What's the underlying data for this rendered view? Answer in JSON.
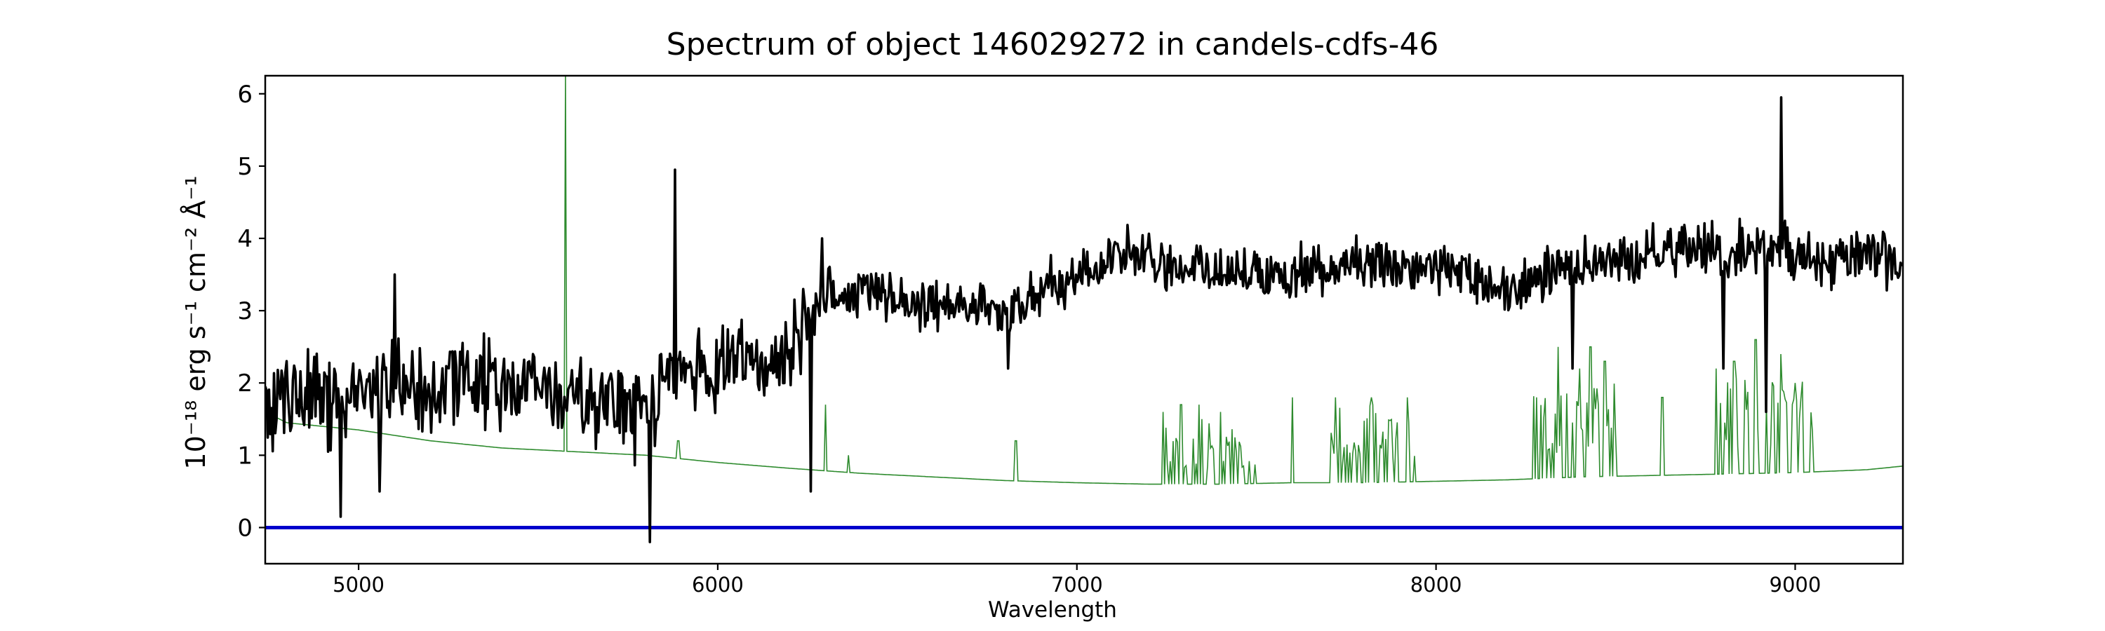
{
  "chart_data": {
    "type": "line",
    "title": "Spectrum of object 146029272 in candels-cdfs-46",
    "xlabel": "Wavelength",
    "ylabel": "10⁻¹⁸ erg s⁻¹ cm⁻² Å⁻¹",
    "xlim": [
      4740,
      9300
    ],
    "ylim": [
      -0.5,
      6.25
    ],
    "xticks": [
      5000,
      6000,
      7000,
      8000,
      9000
    ],
    "yticks": [
      0,
      1,
      2,
      3,
      4,
      5,
      6
    ],
    "grid": false,
    "colors": {
      "flux": "#000000",
      "sky": "#2e8b2e",
      "zero": "#0000cc"
    },
    "flux_anchors": [
      [
        4740,
        1.6
      ],
      [
        4800,
        1.9
      ],
      [
        4900,
        1.7
      ],
      [
        5000,
        1.8
      ],
      [
        5100,
        1.9
      ],
      [
        5200,
        1.9
      ],
      [
        5300,
        2.0
      ],
      [
        5400,
        2.0
      ],
      [
        5500,
        2.0
      ],
      [
        5600,
        1.8
      ],
      [
        5700,
        1.7
      ],
      [
        5760,
        1.6
      ],
      [
        5800,
        1.6
      ],
      [
        5850,
        2.0
      ],
      [
        5900,
        2.1
      ],
      [
        6000,
        2.3
      ],
      [
        6100,
        2.3
      ],
      [
        6200,
        2.4
      ],
      [
        6300,
        3.2
      ],
      [
        6400,
        3.3
      ],
      [
        6500,
        3.2
      ],
      [
        6600,
        3.1
      ],
      [
        6700,
        3.0
      ],
      [
        6800,
        2.9
      ],
      [
        6900,
        3.3
      ],
      [
        7000,
        3.5
      ],
      [
        7100,
        3.8
      ],
      [
        7200,
        3.7
      ],
      [
        7300,
        3.6
      ],
      [
        7400,
        3.6
      ],
      [
        7500,
        3.5
      ],
      [
        7600,
        3.5
      ],
      [
        7700,
        3.6
      ],
      [
        7800,
        3.7
      ],
      [
        7900,
        3.6
      ],
      [
        8000,
        3.6
      ],
      [
        8100,
        3.5
      ],
      [
        8200,
        3.3
      ],
      [
        8300,
        3.5
      ],
      [
        8400,
        3.6
      ],
      [
        8500,
        3.7
      ],
      [
        8600,
        3.8
      ],
      [
        8700,
        3.9
      ],
      [
        8800,
        3.8
      ],
      [
        8900,
        3.9
      ],
      [
        9000,
        3.8
      ],
      [
        9100,
        3.7
      ],
      [
        9200,
        3.8
      ],
      [
        9300,
        3.6
      ]
    ],
    "flux_features": [
      [
        4950,
        0.15
      ],
      [
        5060,
        0.5
      ],
      [
        5100,
        3.5
      ],
      [
        5810,
        -0.2
      ],
      [
        5880,
        4.95
      ],
      [
        6260,
        0.5
      ],
      [
        6290,
        4.0
      ],
      [
        6810,
        2.2
      ],
      [
        8380,
        2.2
      ],
      [
        8800,
        2.2
      ],
      [
        8920,
        1.6
      ],
      [
        8960,
        5.95
      ]
    ],
    "sky_continuum": [
      [
        4740,
        1.6
      ],
      [
        4800,
        1.45
      ],
      [
        5000,
        1.35
      ],
      [
        5200,
        1.2
      ],
      [
        5400,
        1.1
      ],
      [
        5600,
        1.05
      ],
      [
        5800,
        1.0
      ],
      [
        6000,
        0.9
      ],
      [
        6200,
        0.82
      ],
      [
        6400,
        0.75
      ],
      [
        6600,
        0.7
      ],
      [
        6800,
        0.65
      ],
      [
        7000,
        0.62
      ],
      [
        7200,
        0.6
      ],
      [
        7400,
        0.6
      ],
      [
        7600,
        0.62
      ],
      [
        7800,
        0.62
      ],
      [
        8000,
        0.64
      ],
      [
        8200,
        0.66
      ],
      [
        8400,
        0.7
      ],
      [
        8600,
        0.72
      ],
      [
        8800,
        0.74
      ],
      [
        9000,
        0.76
      ],
      [
        9200,
        0.8
      ],
      [
        9300,
        0.85
      ]
    ],
    "sky_lines": [
      [
        5577,
        6.25
      ],
      [
        5890,
        1.2
      ],
      [
        6300,
        1.7
      ],
      [
        6364,
        1.0
      ],
      [
        6830,
        1.2
      ],
      [
        7240,
        1.6
      ],
      [
        7290,
        1.7
      ],
      [
        7340,
        1.7
      ],
      [
        7400,
        1.6
      ],
      [
        7600,
        1.8
      ],
      [
        7720,
        1.8
      ],
      [
        7820,
        1.8
      ],
      [
        7920,
        1.8
      ],
      [
        8280,
        1.8
      ],
      [
        8340,
        2.5
      ],
      [
        8400,
        2.2
      ],
      [
        8430,
        2.5
      ],
      [
        8470,
        2.3
      ],
      [
        8630,
        1.8
      ],
      [
        8780,
        2.2
      ],
      [
        8830,
        2.3
      ],
      [
        8890,
        2.6
      ],
      [
        8960,
        2.4
      ],
      [
        9000,
        2.0
      ]
    ],
    "sky_bands": [
      [
        7240,
        7500,
        1.5
      ],
      [
        7700,
        7950,
        1.7
      ],
      [
        8270,
        8500,
        2.0
      ],
      [
        8760,
        9050,
        2.1
      ]
    ],
    "zero_line": 0
  }
}
